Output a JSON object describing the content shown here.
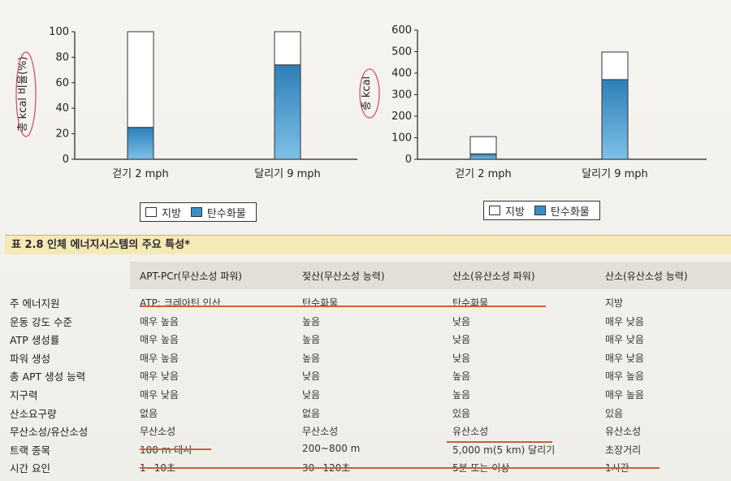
{
  "chart_data": [
    {
      "type": "bar",
      "stacked": true,
      "ylabel": "총 kcal 비율(%)",
      "ylim": [
        0,
        100
      ],
      "yticks": [
        0,
        20,
        40,
        60,
        80,
        100
      ],
      "categories": [
        "걷기 2 mph",
        "달리기 9 mph"
      ],
      "series": [
        {
          "name": "탄수화물",
          "color": "#3c8fc6",
          "values": [
            25,
            74
          ]
        },
        {
          "name": "지방",
          "color": "#ffffff",
          "values": [
            75,
            26
          ]
        }
      ],
      "legend": {
        "position": "bottom",
        "items": [
          "지방",
          "탄수화물"
        ]
      }
    },
    {
      "type": "bar",
      "stacked": true,
      "ylabel": "총 kcal",
      "ylim": [
        0,
        600
      ],
      "yticks": [
        0,
        100,
        200,
        300,
        400,
        500,
        600
      ],
      "categories": [
        "걷기 2 mph",
        "달리기 9 mph"
      ],
      "series": [
        {
          "name": "탄수화물",
          "color": "#3c8fc6",
          "values": [
            25,
            370
          ]
        },
        {
          "name": "지방",
          "color": "#ffffff",
          "values": [
            80,
            128
          ]
        }
      ],
      "legend": {
        "position": "bottom",
        "items": [
          "지방",
          "탄수화물"
        ]
      }
    }
  ],
  "table": {
    "title": "표 2.8  인체 에너지시스템의 주요 특성*",
    "columns": [
      "APT-PCr(무산소성 파워)",
      "젖산(무산소성 능력)",
      "산소(유산소성 파워)",
      "산소(유산소성 능력)"
    ],
    "rows": [
      {
        "label": "주 에너지원",
        "cells": [
          "ATP; 크레아틴 인산",
          "탄수화물",
          "탄수화물",
          "지방"
        ]
      },
      {
        "label": "운동 강도 수준",
        "cells": [
          "매우 높음",
          "높음",
          "낮음",
          "매우 낮음"
        ]
      },
      {
        "label": "ATP 생성률",
        "cells": [
          "매우 높음",
          "높음",
          "낮음",
          "매우 낮음"
        ]
      },
      {
        "label": "파워 생성",
        "cells": [
          "매우 높음",
          "높음",
          "낮음",
          "매우 낮음"
        ]
      },
      {
        "label": "총 APT 생성 능력",
        "cells": [
          "매우 낮음",
          "낮음",
          "높음",
          "매우 높음"
        ]
      },
      {
        "label": "지구력",
        "cells": [
          "매우 낮음",
          "낮음",
          "높음",
          "매우 높음"
        ]
      },
      {
        "label": "산소요구량",
        "cells": [
          "없음",
          "없음",
          "있음",
          "있음"
        ]
      },
      {
        "label": "무산소성/유산소성",
        "cells": [
          "무산소성",
          "무산소성",
          "유산소성",
          "유산소성"
        ]
      },
      {
        "label": "트랙 종목",
        "cells": [
          "100 m 대시",
          "200~800 m",
          "5,000 m(5 km) 달리기",
          "초장거리"
        ]
      },
      {
        "label": "시간 요인",
        "cells": [
          "1~10초",
          "30~120초",
          "5분 또는 이상",
          "1시간"
        ]
      }
    ]
  }
}
